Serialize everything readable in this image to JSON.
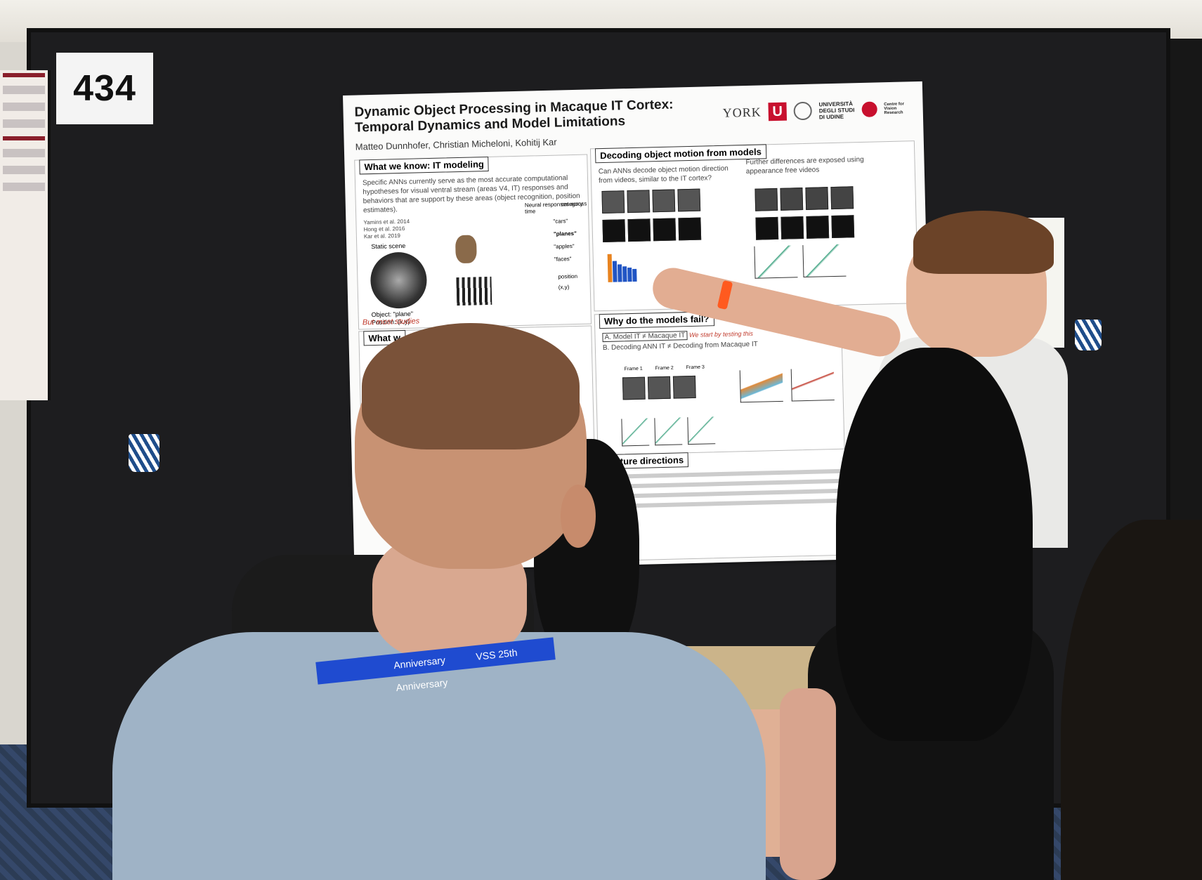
{
  "scene": {
    "board_number": "434",
    "lanyard_text": "VSS 25th Anniversary",
    "lanyard_text_left": "Anniversary"
  },
  "poster": {
    "title_line1": "Dynamic Object Processing in Macaque IT Cortex:",
    "title_line2": "Temporal Dynamics and Model Limitations",
    "authors": "Matteo Dunnhofer, Christian Micheloni, Kohitij Kar",
    "logos": {
      "york": "YORK",
      "york_u": "U",
      "udine_line1": "UNIVERSITÀ",
      "udine_line2": "DEGLI STUDI",
      "udine_line3": "DI UDINE",
      "cvr": "Centre for Vision Research"
    },
    "sections": {
      "what_we_know": {
        "heading": "What we know: IT modeling",
        "body": "Specific ANNs currently serve as the most accurate computational hypotheses for visual ventral stream (areas V4, IT) responses and behaviors that are support by these areas (object recognition, position estimates).",
        "refs": [
          "Yamins et al. 2014",
          "Hong et al. 2016",
          "Kar et al. 2019"
        ],
        "static_scene": "Static scene",
        "object_label": "Object: \"plane\"",
        "position_label": "Position: (x,y)",
        "categories": [
          "\"cars\"",
          "\"planes\"",
          "\"apples\"",
          "\"faces\""
        ],
        "neural_label": "Neural responses across time",
        "category_label": "category",
        "position_head": "position",
        "xy": "(x,y)",
        "red_text": "But most studies"
      },
      "decoding": {
        "heading": "Decoding object motion from models",
        "body": "Can ANNs decode object motion direction from videos, similar to the IT cortex?",
        "further": "Further differences are exposed using appearance free videos"
      },
      "why_fail": {
        "heading": "Why do the models fail?",
        "item_a": "A. Model IT ≠ Macaque IT",
        "item_b": "B. Decoding ANN IT ≠ Decoding from Macaque IT",
        "red_note": "We start by testing this",
        "frames": [
          "Frame 1",
          "Frame 2",
          "Frame 3"
        ]
      },
      "what_we_2": {
        "heading": "What w"
      },
      "future": {
        "heading": "uture directions"
      }
    }
  }
}
